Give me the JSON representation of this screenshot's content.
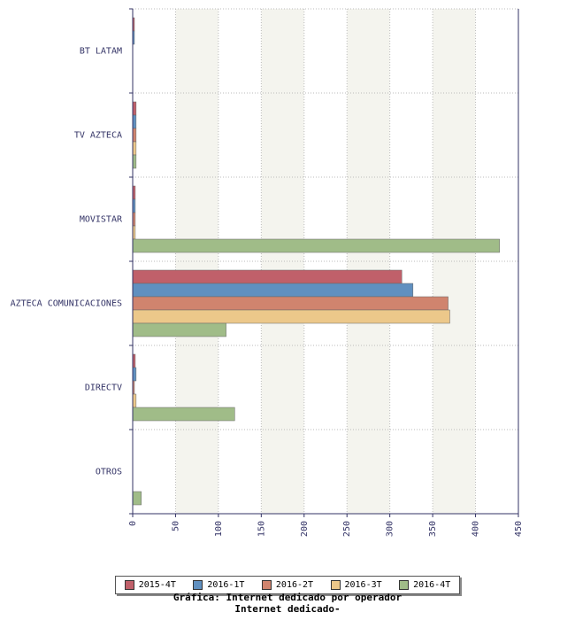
{
  "chart_data": {
    "type": "bar",
    "orientation": "horizontal",
    "title": "Gráfica: Internet dedicado por operador",
    "subtitle": "Internet dedicado-",
    "categories": [
      "BT LATAM",
      "TV AZTECA",
      "MOVISTAR",
      "AZTECA COMUNICACIONES",
      "DIRECTV",
      "OTROS"
    ],
    "series": [
      {
        "name": "2015-4T",
        "color": "#c0606a",
        "values": [
          2,
          4,
          3,
          314,
          3,
          0
        ]
      },
      {
        "name": "2016-1T",
        "color": "#6090c0",
        "values": [
          2,
          4,
          3,
          327,
          4,
          0
        ]
      },
      {
        "name": "2016-2T",
        "color": "#d0846e",
        "values": [
          0,
          4,
          3,
          368,
          2,
          0
        ]
      },
      {
        "name": "2016-3T",
        "color": "#ecc88a",
        "values": [
          0,
          4,
          3,
          370,
          4,
          0
        ]
      },
      {
        "name": "2016-4T",
        "color": "#a0bc88",
        "values": [
          0,
          4,
          428,
          109,
          119,
          10
        ]
      }
    ],
    "xlim": [
      0,
      450
    ],
    "xticks": [
      0,
      50,
      100,
      150,
      200,
      250,
      300,
      350,
      400,
      450
    ],
    "grid": true,
    "legend_position": "bottom"
  }
}
